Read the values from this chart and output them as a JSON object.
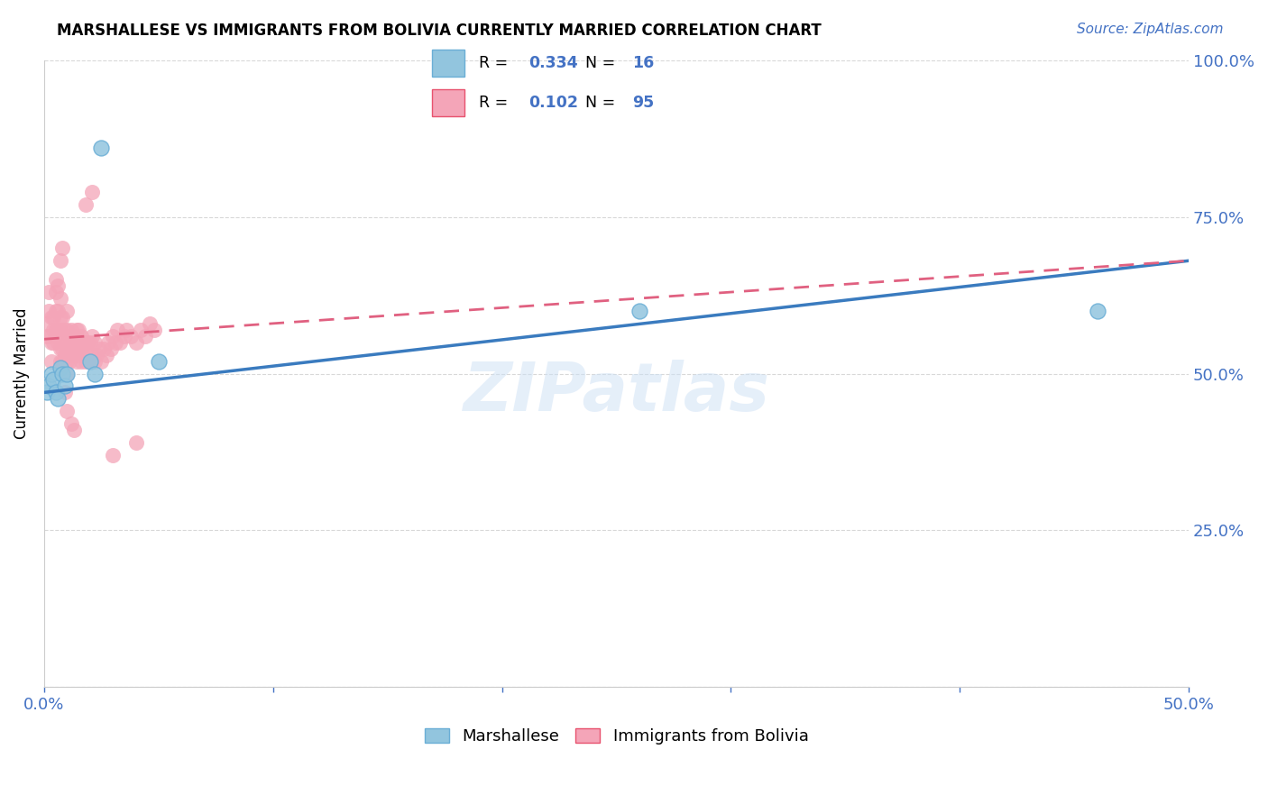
{
  "title": "MARSHALLESE VS IMMIGRANTS FROM BOLIVIA CURRENTLY MARRIED CORRELATION CHART",
  "source": "Source: ZipAtlas.com",
  "ylabel_label": "Currently Married",
  "xlim": [
    0.0,
    0.5
  ],
  "ylim": [
    0.0,
    1.0
  ],
  "xticks": [
    0.0,
    0.1,
    0.2,
    0.3,
    0.4,
    0.5
  ],
  "yticks": [
    0.0,
    0.25,
    0.5,
    0.75,
    1.0
  ],
  "legend1_R": "0.334",
  "legend1_N": "16",
  "legend2_R": "0.102",
  "legend2_N": "95",
  "marshallese_color": "#92c5de",
  "bolivia_color": "#f4a5b8",
  "marshallese_line_color": "#3a7bbf",
  "bolivia_line_color": "#e06080",
  "watermark": "ZIPatlas",
  "marshallese_x": [
    0.001,
    0.002,
    0.003,
    0.004,
    0.005,
    0.006,
    0.007,
    0.008,
    0.009,
    0.01,
    0.02,
    0.022,
    0.025,
    0.05,
    0.26,
    0.46
  ],
  "marshallese_y": [
    0.47,
    0.48,
    0.5,
    0.49,
    0.47,
    0.46,
    0.51,
    0.5,
    0.48,
    0.5,
    0.52,
    0.5,
    0.86,
    0.52,
    0.6,
    0.6
  ],
  "bolivia_x": [
    0.001,
    0.001,
    0.002,
    0.002,
    0.002,
    0.003,
    0.003,
    0.003,
    0.004,
    0.004,
    0.004,
    0.005,
    0.005,
    0.005,
    0.005,
    0.005,
    0.006,
    0.006,
    0.006,
    0.006,
    0.007,
    0.007,
    0.007,
    0.007,
    0.007,
    0.008,
    0.008,
    0.008,
    0.008,
    0.009,
    0.009,
    0.009,
    0.01,
    0.01,
    0.01,
    0.01,
    0.01,
    0.011,
    0.011,
    0.011,
    0.012,
    0.012,
    0.012,
    0.013,
    0.013,
    0.014,
    0.014,
    0.014,
    0.015,
    0.015,
    0.015,
    0.016,
    0.016,
    0.016,
    0.017,
    0.017,
    0.018,
    0.018,
    0.019,
    0.019,
    0.02,
    0.02,
    0.021,
    0.021,
    0.022,
    0.022,
    0.023,
    0.024,
    0.025,
    0.026,
    0.027,
    0.028,
    0.029,
    0.03,
    0.031,
    0.032,
    0.033,
    0.035,
    0.036,
    0.038,
    0.04,
    0.042,
    0.044,
    0.046,
    0.048,
    0.018,
    0.021,
    0.01,
    0.013,
    0.007,
    0.008,
    0.009,
    0.012,
    0.04,
    0.03
  ],
  "bolivia_y": [
    0.56,
    0.58,
    0.56,
    0.6,
    0.63,
    0.52,
    0.55,
    0.59,
    0.55,
    0.57,
    0.59,
    0.56,
    0.57,
    0.6,
    0.63,
    0.65,
    0.55,
    0.57,
    0.6,
    0.64,
    0.52,
    0.54,
    0.57,
    0.59,
    0.62,
    0.52,
    0.54,
    0.56,
    0.59,
    0.53,
    0.55,
    0.57,
    0.5,
    0.52,
    0.54,
    0.57,
    0.6,
    0.52,
    0.54,
    0.56,
    0.53,
    0.55,
    0.57,
    0.54,
    0.56,
    0.52,
    0.54,
    0.57,
    0.53,
    0.55,
    0.57,
    0.52,
    0.54,
    0.56,
    0.53,
    0.55,
    0.52,
    0.55,
    0.53,
    0.55,
    0.52,
    0.55,
    0.53,
    0.56,
    0.52,
    0.55,
    0.53,
    0.54,
    0.52,
    0.54,
    0.53,
    0.55,
    0.54,
    0.56,
    0.55,
    0.57,
    0.55,
    0.56,
    0.57,
    0.56,
    0.55,
    0.57,
    0.56,
    0.58,
    0.57,
    0.77,
    0.79,
    0.44,
    0.41,
    0.68,
    0.7,
    0.47,
    0.42,
    0.39,
    0.37
  ]
}
